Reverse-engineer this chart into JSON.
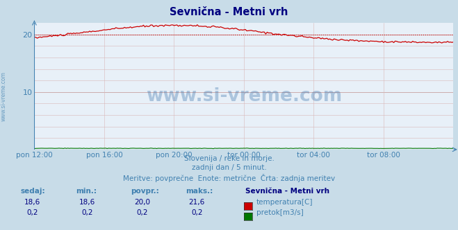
{
  "title": "Sevnična - Metni vrh",
  "title_color": "#000080",
  "bg_color": "#c8dce8",
  "plot_bg_color": "#e8f0f8",
  "grid_color_minor": "#d8b8b8",
  "grid_color_major": "#c8a0a0",
  "temp_color": "#cc0000",
  "flow_color": "#007700",
  "avg_line_color": "#cc0000",
  "xlim": [
    0,
    288
  ],
  "ylim": [
    0,
    22
  ],
  "ytick_vals": [
    10,
    20
  ],
  "xtick_labels": [
    "pon 12:00",
    "pon 16:00",
    "pon 20:00",
    "tor 00:00",
    "tor 04:00",
    "tor 08:00"
  ],
  "xtick_positions": [
    0,
    48,
    96,
    144,
    192,
    240
  ],
  "tick_color": "#4080b0",
  "subtitle1": "Slovenija / reke in morje.",
  "subtitle2": "zadnji dan / 5 minut.",
  "subtitle3": "Meritve: povprečne  Enote: metrične  Črta: zadnja meritev",
  "subtitle_color": "#4080b0",
  "watermark": "www.si-vreme.com",
  "watermark_color": "#2060a0",
  "watermark_alpha": 0.3,
  "temp_avg": 20.0,
  "legend_title": "Sevnična - Metni vrh",
  "sedaj_label": "sedaj:",
  "min_label": "min.:",
  "povpr_label": "povpr.:",
  "maks_label": "maks.:",
  "temp_label": "temperatura[C]",
  "flow_label": "pretok[m3/s]",
  "sedaj_temp": "18,6",
  "min_temp": "18,6",
  "povpr_temp": "20,0",
  "maks_temp": "21,6",
  "sedaj_flow": "0,2",
  "min_flow": "0,2",
  "povpr_flow": "0,2",
  "maks_flow": "0,2",
  "label_color": "#4080b0",
  "value_color": "#000080",
  "left_text": "www.si-vreme.com"
}
